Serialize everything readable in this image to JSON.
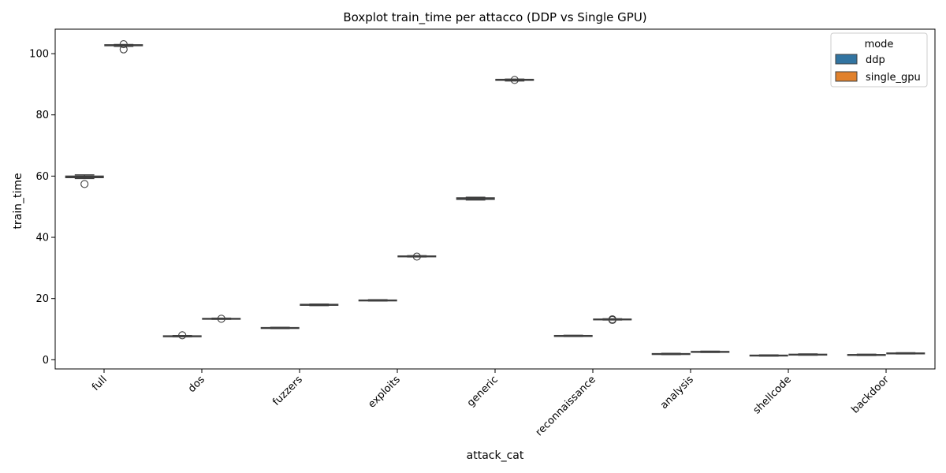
{
  "chart_data": {
    "type": "boxplot",
    "title": "Boxplot train_time per attacco (DDP vs Single GPU)",
    "xlabel": "attack_cat",
    "ylabel": "train_time",
    "ylim": [
      -3,
      108
    ],
    "yticks": [
      0,
      20,
      40,
      60,
      80,
      100
    ],
    "ytick_labels": [
      "0",
      "20",
      "40",
      "60",
      "80",
      "100"
    ],
    "categories": [
      "full",
      "dos",
      "fuzzers",
      "exploits",
      "generic",
      "reconnaissance",
      "analysis",
      "shellcode",
      "backdoor"
    ],
    "legend": {
      "title": "mode",
      "position": "top-right"
    },
    "series": [
      {
        "name": "ddp",
        "color": "#3274a1",
        "boxes": [
          {
            "q1": 59.5,
            "median": 59.7,
            "q3": 60.0,
            "whisker_low": 59.2,
            "whisker_high": 60.4,
            "outliers": [
              57.4
            ]
          },
          {
            "q1": 7.6,
            "median": 7.7,
            "q3": 7.8,
            "whisker_low": 7.5,
            "whisker_high": 7.9,
            "outliers": [
              8.0
            ]
          },
          {
            "q1": 10.3,
            "median": 10.4,
            "q3": 10.5,
            "whisker_low": 10.2,
            "whisker_high": 10.6,
            "outliers": []
          },
          {
            "q1": 19.3,
            "median": 19.4,
            "q3": 19.5,
            "whisker_low": 19.2,
            "whisker_high": 19.6,
            "outliers": []
          },
          {
            "q1": 52.4,
            "median": 52.7,
            "q3": 52.9,
            "whisker_low": 52.2,
            "whisker_high": 53.1,
            "outliers": []
          },
          {
            "q1": 7.7,
            "median": 7.8,
            "q3": 7.9,
            "whisker_low": 7.6,
            "whisker_high": 8.0,
            "outliers": []
          },
          {
            "q1": 1.8,
            "median": 1.9,
            "q3": 2.0,
            "whisker_low": 1.7,
            "whisker_high": 2.1,
            "outliers": []
          },
          {
            "q1": 1.3,
            "median": 1.4,
            "q3": 1.5,
            "whisker_low": 1.2,
            "whisker_high": 1.6,
            "outliers": []
          },
          {
            "q1": 1.5,
            "median": 1.6,
            "q3": 1.7,
            "whisker_low": 1.4,
            "whisker_high": 1.8,
            "outliers": []
          }
        ]
      },
      {
        "name": "single_gpu",
        "color": "#e1812c",
        "boxes": [
          {
            "q1": 102.6,
            "median": 102.7,
            "q3": 102.9,
            "whisker_low": 102.4,
            "whisker_high": 103.0,
            "outliers": [
              103.1,
              101.4
            ]
          },
          {
            "q1": 13.3,
            "median": 13.4,
            "q3": 13.5,
            "whisker_low": 13.2,
            "whisker_high": 13.6,
            "outliers": [
              13.4
            ]
          },
          {
            "q1": 17.8,
            "median": 17.9,
            "q3": 18.1,
            "whisker_low": 17.7,
            "whisker_high": 18.2,
            "outliers": []
          },
          {
            "q1": 33.7,
            "median": 33.8,
            "q3": 33.9,
            "whisker_low": 33.6,
            "whisker_high": 34.0,
            "outliers": [
              33.7
            ]
          },
          {
            "q1": 91.3,
            "median": 91.4,
            "q3": 91.6,
            "whisker_low": 91.1,
            "whisker_high": 91.7,
            "outliers": [
              91.4
            ]
          },
          {
            "q1": 13.1,
            "median": 13.2,
            "q3": 13.3,
            "whisker_low": 13.0,
            "whisker_high": 13.4,
            "outliers": [
              13.2,
              13.0
            ]
          },
          {
            "q1": 2.5,
            "median": 2.6,
            "q3": 2.7,
            "whisker_low": 2.4,
            "whisker_high": 2.8,
            "outliers": []
          },
          {
            "q1": 1.6,
            "median": 1.7,
            "q3": 1.8,
            "whisker_low": 1.5,
            "whisker_high": 1.9,
            "outliers": []
          },
          {
            "q1": 2.0,
            "median": 2.1,
            "q3": 2.2,
            "whisker_low": 1.9,
            "whisker_high": 2.3,
            "outliers": []
          }
        ]
      }
    ]
  }
}
